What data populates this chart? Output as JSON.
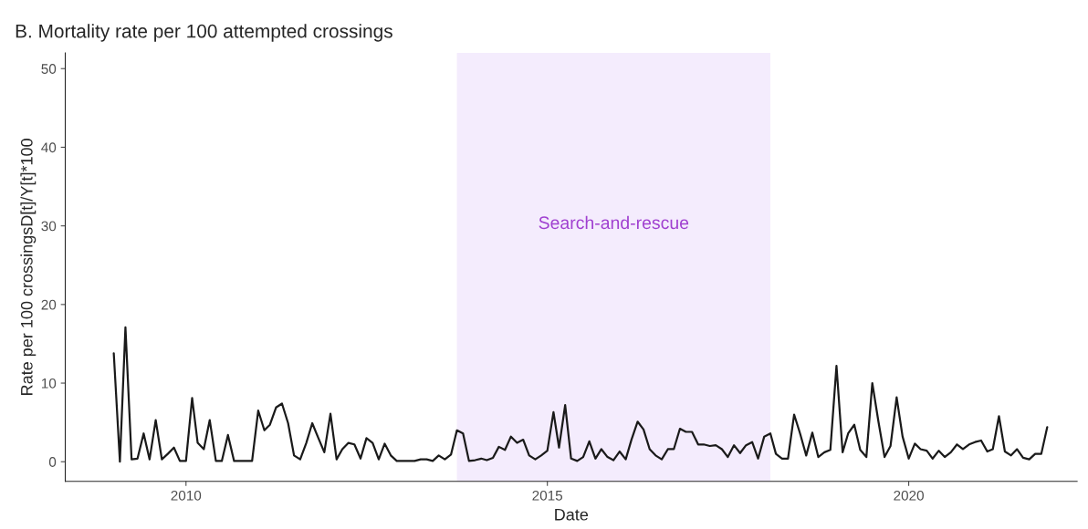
{
  "chart_data": {
    "type": "line",
    "title": "B. Mortality rate per 100 attempted crossings",
    "xlabel": "Date",
    "ylabel": "Rate per 100 crossingsD[t]/Y[t]*100",
    "x": [
      "2009-01",
      "2009-02",
      "2009-03",
      "2009-04",
      "2009-05",
      "2009-06",
      "2009-07",
      "2009-08",
      "2009-09",
      "2009-10",
      "2009-11",
      "2009-12",
      "2010-01",
      "2010-02",
      "2010-03",
      "2010-04",
      "2010-05",
      "2010-06",
      "2010-07",
      "2010-08",
      "2010-09",
      "2010-10",
      "2010-11",
      "2010-12",
      "2011-01",
      "2011-02",
      "2011-03",
      "2011-04",
      "2011-05",
      "2011-06",
      "2011-07",
      "2011-08",
      "2011-09",
      "2011-10",
      "2011-11",
      "2011-12",
      "2012-01",
      "2012-02",
      "2012-03",
      "2012-04",
      "2012-05",
      "2012-06",
      "2012-07",
      "2012-08",
      "2012-09",
      "2012-10",
      "2012-11",
      "2012-12",
      "2013-01",
      "2013-02",
      "2013-03",
      "2013-04",
      "2013-05",
      "2013-06",
      "2013-07",
      "2013-08",
      "2013-09",
      "2013-10",
      "2013-11",
      "2013-12",
      "2014-01",
      "2014-02",
      "2014-03",
      "2014-04",
      "2014-05",
      "2014-06",
      "2014-07",
      "2014-08",
      "2014-09",
      "2014-10",
      "2014-11",
      "2014-12",
      "2015-01",
      "2015-02",
      "2015-03",
      "2015-04",
      "2015-05",
      "2015-06",
      "2015-07",
      "2015-08",
      "2015-09",
      "2015-10",
      "2015-11",
      "2015-12",
      "2016-01",
      "2016-02",
      "2016-03",
      "2016-04",
      "2016-05",
      "2016-06",
      "2016-07",
      "2016-08",
      "2016-09",
      "2016-10",
      "2016-11",
      "2016-12",
      "2017-01",
      "2017-02",
      "2017-03",
      "2017-04",
      "2017-05",
      "2017-06",
      "2017-07",
      "2017-08",
      "2017-09",
      "2017-10",
      "2017-11",
      "2017-12",
      "2018-01",
      "2018-02",
      "2018-03",
      "2018-04",
      "2018-05",
      "2018-06",
      "2018-07",
      "2018-08",
      "2018-09",
      "2018-10",
      "2018-11",
      "2018-12",
      "2019-01",
      "2019-02",
      "2019-03",
      "2019-04",
      "2019-05",
      "2019-06",
      "2019-07",
      "2019-08",
      "2019-09",
      "2019-10",
      "2019-11",
      "2019-12",
      "2020-01",
      "2020-02",
      "2020-03",
      "2020-04",
      "2020-05",
      "2020-06",
      "2020-07",
      "2020-08",
      "2020-09",
      "2020-10",
      "2020-11",
      "2020-12",
      "2021-01",
      "2021-02",
      "2021-03",
      "2021-04",
      "2021-05",
      "2021-06",
      "2021-07",
      "2021-08",
      "2021-09",
      "2021-10",
      "2021-11",
      "2021-12"
    ],
    "series": [
      {
        "color": "#1a1a1a",
        "values": [
          13.8,
          0,
          17.1,
          0.3,
          0.4,
          3.6,
          0.3,
          5.3,
          0.3,
          1.0,
          1.8,
          0.1,
          0.1,
          8.1,
          2.4,
          1.6,
          5.3,
          0.1,
          0.1,
          3.4,
          0.1,
          0.1,
          0.1,
          0.1,
          6.5,
          4.0,
          4.7,
          6.9,
          7.4,
          4.9,
          0.8,
          0.3,
          2.4,
          4.9,
          3.0,
          1.2,
          6.1,
          0.3,
          1.6,
          2.4,
          2.2,
          0.4,
          3.0,
          2.4,
          0.3,
          2.3,
          0.8,
          0.1,
          0.1,
          0.1,
          0.1,
          0.3,
          0.3,
          0.1,
          0.8,
          0.3,
          0.9,
          4.0,
          3.6,
          0.1,
          0.2,
          0.4,
          0.2,
          0.5,
          1.9,
          1.5,
          3.2,
          2.4,
          2.8,
          0.8,
          0.3,
          0.8,
          1.4,
          6.3,
          1.8,
          7.2,
          0.4,
          0.1,
          0.6,
          2.6,
          0.4,
          1.6,
          0.6,
          0.2,
          1.3,
          0.3,
          2.8,
          5.1,
          4.1,
          1.6,
          0.8,
          0.3,
          1.6,
          1.6,
          4.2,
          3.8,
          3.8,
          2.2,
          2.2,
          2.0,
          2.1,
          1.6,
          0.6,
          2.1,
          1.1,
          2.1,
          2.5,
          0.4,
          3.2,
          3.6,
          1.0,
          0.4,
          0.4,
          6.0,
          3.6,
          0.8,
          3.7,
          0.6,
          1.2,
          1.5,
          12.2,
          1.2,
          3.6,
          4.7,
          1.5,
          0.6,
          10.0,
          5.1,
          0.6,
          2.0,
          8.2,
          3.2,
          0.4,
          2.3,
          1.6,
          1.4,
          0.4,
          1.4,
          0.6,
          1.2,
          2.2,
          1.6,
          2.2,
          2.5,
          2.7,
          1.3,
          1.6,
          5.8,
          1.3,
          0.8,
          1.6,
          0.5,
          0.3,
          1.0,
          1.0,
          4.4
        ]
      }
    ],
    "xlim": [
      "2008-05",
      "2022-05"
    ],
    "xticks": [
      {
        "value": "2010",
        "label": "2010"
      },
      {
        "value": "2015",
        "label": "2015"
      },
      {
        "value": "2020",
        "label": "2020"
      }
    ],
    "ylim": [
      -2.5,
      52
    ],
    "yticks": [
      0,
      10,
      20,
      30,
      40,
      50
    ],
    "bands": [
      {
        "axis": "x",
        "from": "2013-10",
        "to": "2018-02",
        "color": "#f4ecfd",
        "label": "Search-and-rescue"
      }
    ],
    "grid": false,
    "legend": false,
    "marker": "none",
    "line_style": "solid"
  }
}
